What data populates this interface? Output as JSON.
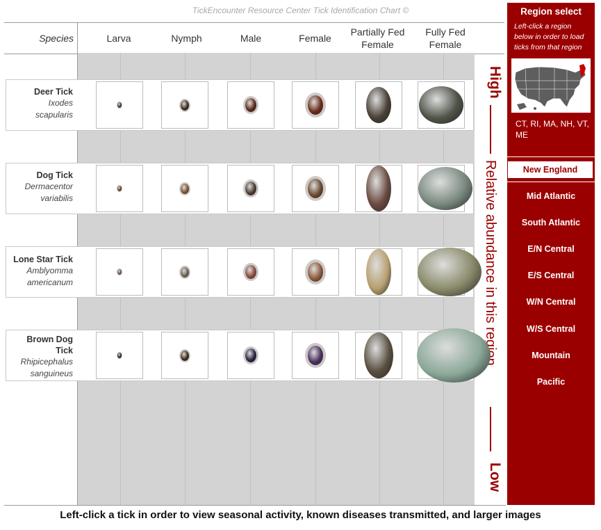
{
  "chart_title": "TickEncounter Resource Center Tick Identification Chart ©",
  "columns": {
    "species": "Species",
    "larva": "Larva",
    "nymph": "Nymph",
    "male": "Male",
    "female": "Female",
    "partially_fed_1": "Partially Fed",
    "partially_fed_2": "Female",
    "fully_fed_1": "Fully Fed",
    "fully_fed_2": "Female"
  },
  "species": [
    {
      "common": "Deer Tick",
      "sci_1": "Ixodes",
      "sci_2": "scapularis"
    },
    {
      "common": "Dog Tick",
      "sci_1": "Dermacentor",
      "sci_2": "variabilis"
    },
    {
      "common": "Lone Star Tick",
      "sci_1": "Amblyomma",
      "sci_2": "americanum"
    },
    {
      "common_1": "Brown Dog",
      "common_2": "Tick",
      "sci_1": "Rhipicephalus",
      "sci_2": "sanguineus"
    }
  ],
  "abundance": {
    "high": "High",
    "label": "Relative abundance in this region",
    "low": "Low"
  },
  "sidebar": {
    "title": "Region select",
    "instructions": "Left-click a region below in order to load ticks from that region",
    "map_icon": "us-map-icon",
    "states": "CT, RI, MA, NH, VT, ME",
    "regions": [
      "New England",
      "Mid Atlantic",
      "South Atlantic",
      "E/N Central",
      "E/S Central",
      "W/N Central",
      "W/S Central",
      "Mountain",
      "Pacific"
    ],
    "selected_region": "New England"
  },
  "footer": "Left-click a tick in order to view seasonal activity, known diseases transmitted, and larger images",
  "colors": {
    "accent": "#9b0000",
    "grid": "#d3d3d3"
  }
}
